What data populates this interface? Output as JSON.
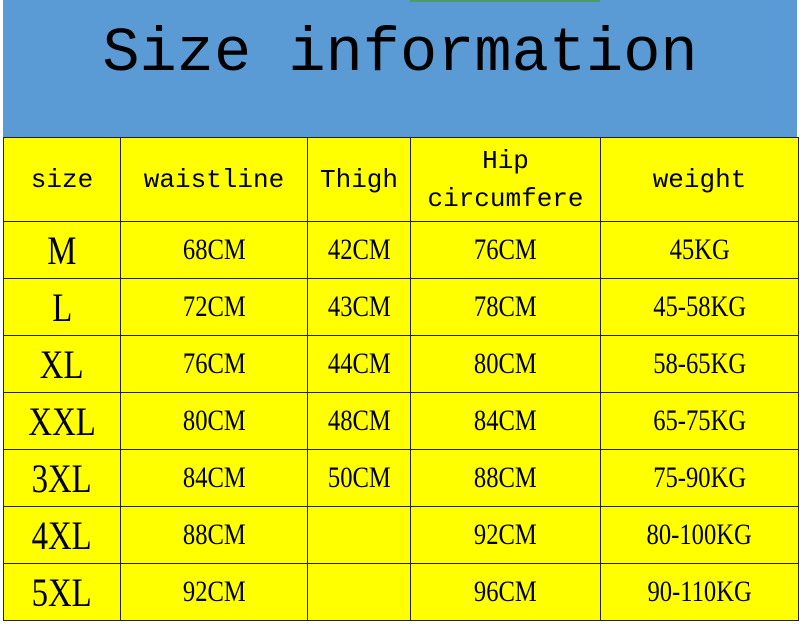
{
  "title": "Size information",
  "colors": {
    "banner": "#5b9bd5",
    "table": "#ffff00"
  },
  "headers": [
    "size",
    "waistline",
    "Thigh",
    "Hip circumfere",
    "weight"
  ],
  "rows": [
    {
      "size": "M",
      "waistline": "68CM",
      "thigh": "42CM",
      "hip": "76CM",
      "weight": "45KG"
    },
    {
      "size": "L",
      "waistline": "72CM",
      "thigh": "43CM",
      "hip": "78CM",
      "weight": "45-58KG"
    },
    {
      "size": "XL",
      "waistline": "76CM",
      "thigh": "44CM",
      "hip": "80CM",
      "weight": "58-65KG"
    },
    {
      "size": "XXL",
      "waistline": "80CM",
      "thigh": "48CM",
      "hip": "84CM",
      "weight": "65-75KG"
    },
    {
      "size": "3XL",
      "waistline": "84CM",
      "thigh": "50CM",
      "hip": "88CM",
      "weight": "75-90KG"
    },
    {
      "size": "4XL",
      "waistline": "88CM",
      "thigh": "",
      "hip": "92CM",
      "weight": "80-100KG"
    },
    {
      "size": "5XL",
      "waistline": "92CM",
      "thigh": "",
      "hip": "96CM",
      "weight": "90-110KG"
    }
  ]
}
